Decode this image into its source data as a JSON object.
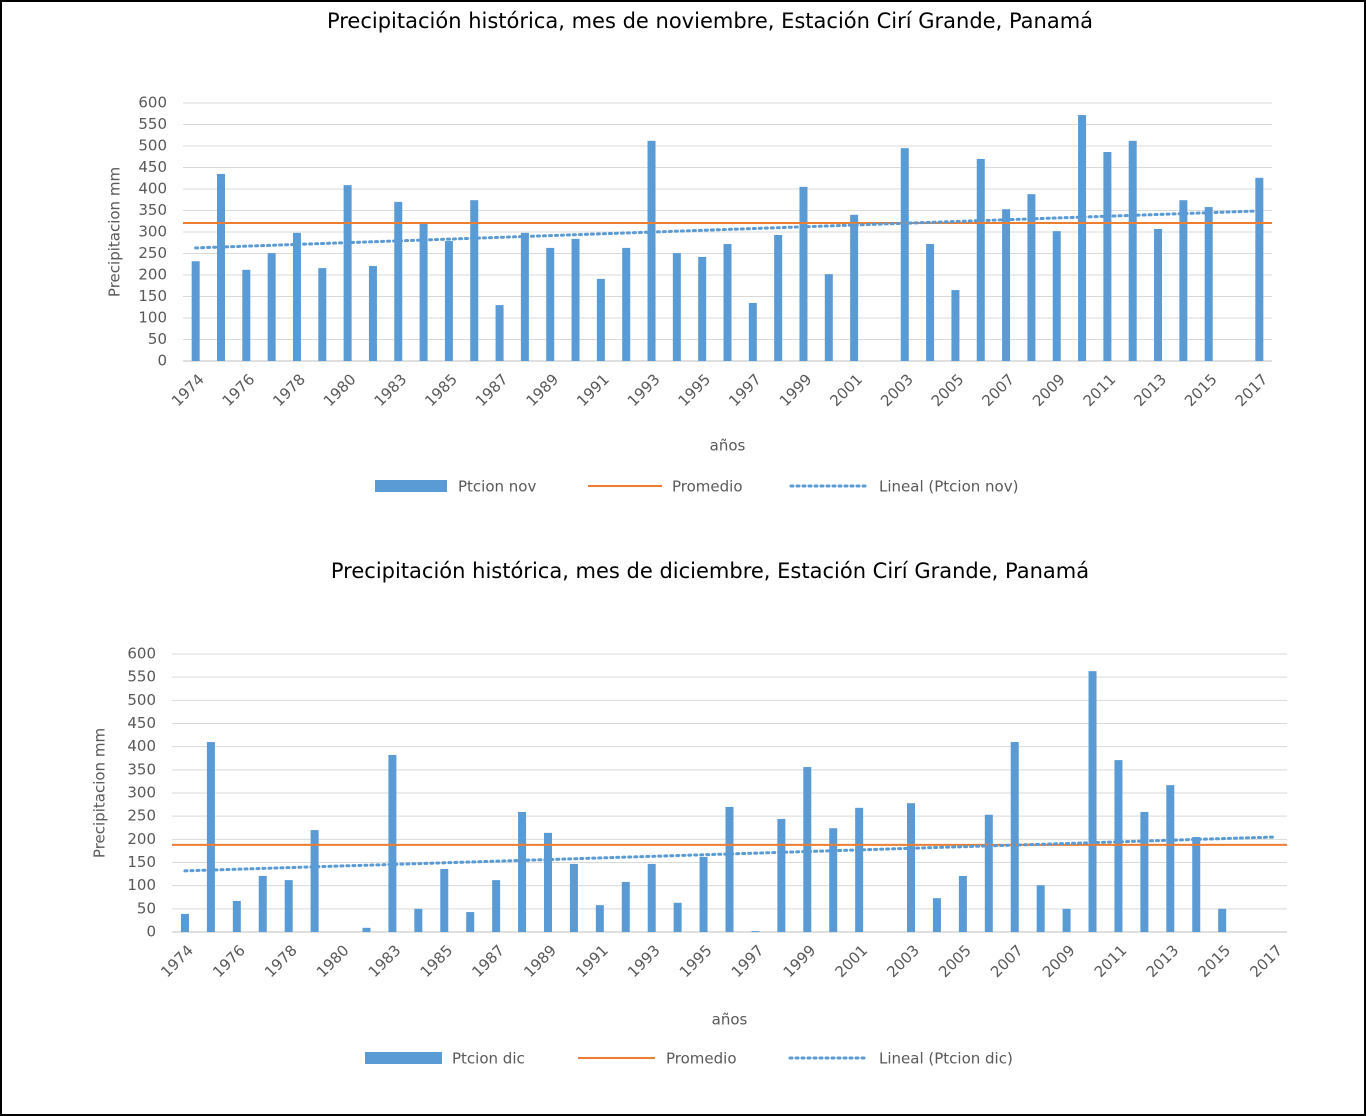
{
  "chart_data": [
    {
      "type": "bar",
      "title": "Precipitación histórica, mes de noviembre, Estación Cirí Grande, Panamá",
      "x_label": "años",
      "y_label": "Precipitacion mm",
      "categories": [
        "1974",
        null,
        "1976",
        null,
        "1978",
        null,
        "1980",
        null,
        "1983",
        null,
        "1985",
        null,
        "1987",
        null,
        "1989",
        null,
        "1991",
        null,
        "1993",
        null,
        "1995",
        null,
        "1997",
        null,
        "1999",
        null,
        "2001",
        null,
        "2003",
        null,
        "2005",
        null,
        "2007",
        null,
        "2009",
        null,
        "2011",
        null,
        "2013",
        null,
        "2015",
        null,
        "2017"
      ],
      "series": [
        {
          "name": "Ptcion nov",
          "type": "bar",
          "color": "#5b9bd5",
          "values": [
            232,
            435,
            212,
            251,
            298,
            216,
            409,
            221,
            370,
            319,
            279,
            374,
            130,
            298,
            263,
            284,
            191,
            263,
            512,
            251,
            242,
            272,
            135,
            293,
            405,
            202,
            340,
            null,
            495,
            272,
            165,
            470,
            353,
            388,
            302,
            572,
            486,
            512,
            307,
            374,
            358,
            null,
            426
          ]
        },
        {
          "name": "Promedio",
          "type": "hline",
          "color": "#ed7d31",
          "value": 321
        },
        {
          "name": "Lineal (Ptcion nov)",
          "type": "trend",
          "color": "#5b9bd5",
          "start": 263,
          "end": 349
        }
      ],
      "ylim": [
        0,
        600
      ],
      "yticks": [
        0,
        50,
        100,
        150,
        200,
        250,
        300,
        350,
        400,
        450,
        500,
        550,
        600
      ],
      "grid": true
    },
    {
      "type": "bar",
      "title": "Precipitación histórica, mes de diciembre, Estación Cirí Grande, Panamá",
      "x_label": "años",
      "y_label": "Precipitacion mm",
      "categories": [
        "1974",
        null,
        "1976",
        null,
        "1978",
        null,
        "1980",
        null,
        "1983",
        null,
        "1985",
        null,
        "1987",
        null,
        "1989",
        null,
        "1991",
        null,
        "1993",
        null,
        "1995",
        null,
        "1997",
        null,
        "1999",
        null,
        "2001",
        null,
        "2003",
        null,
        "2005",
        null,
        "2007",
        null,
        "2009",
        null,
        "2011",
        null,
        "2013",
        null,
        "2015",
        null,
        "2017"
      ],
      "series": [
        {
          "name": "Ptcion dic",
          "type": "bar",
          "color": "#5b9bd5",
          "values": [
            39,
            410,
            67,
            121,
            112,
            220,
            null,
            9,
            382,
            50,
            136,
            43,
            112,
            259,
            214,
            147,
            58,
            108,
            147,
            63,
            162,
            270,
            2,
            244,
            356,
            224,
            268,
            null,
            278,
            73,
            121,
            253,
            410,
            101,
            50,
            563,
            371,
            259,
            317,
            205,
            50,
            null,
            null
          ]
        },
        {
          "name": "Promedio",
          "type": "hline",
          "color": "#ed7d31",
          "value": 188
        },
        {
          "name": "Lineal (Ptcion dic)",
          "type": "trend",
          "color": "#5b9bd5",
          "start": 132,
          "end": 205
        }
      ],
      "ylim": [
        0,
        600
      ],
      "yticks": [
        0,
        50,
        100,
        150,
        200,
        250,
        300,
        350,
        400,
        450,
        500,
        550,
        600
      ],
      "grid": true
    }
  ]
}
